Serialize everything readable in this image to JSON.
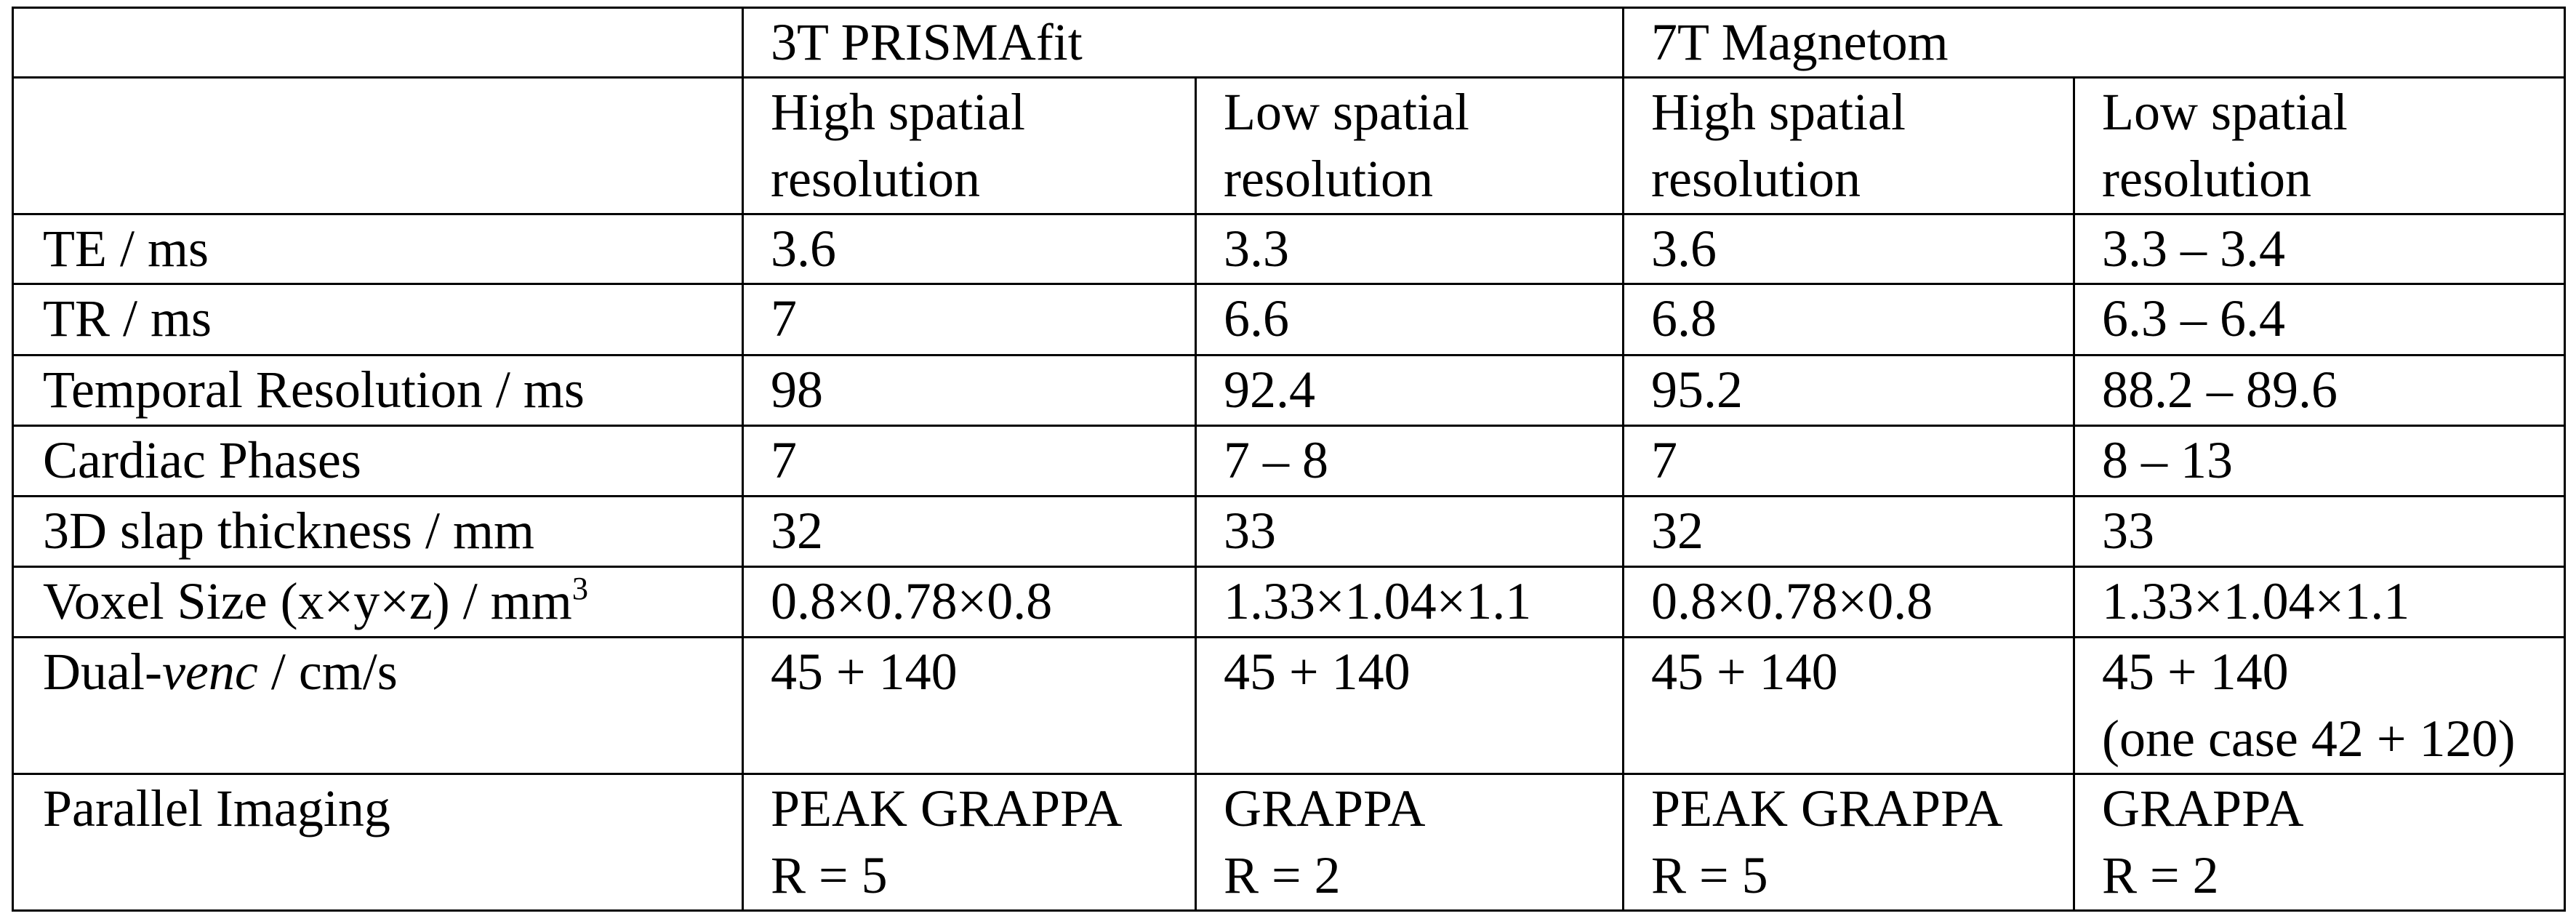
{
  "table": {
    "scanners": [
      {
        "label": "3T PRISMAfit"
      },
      {
        "label": "7T Magnetom"
      }
    ],
    "protocols": [
      {
        "line1": "High spatial",
        "line2": "resolution"
      },
      {
        "line1": "Low spatial",
        "line2": "resolution"
      },
      {
        "line1": "High spatial",
        "line2": "resolution"
      },
      {
        "line1": "Low spatial",
        "line2": "resolution"
      }
    ],
    "rows": [
      {
        "label": "TE / ms",
        "cells": [
          [
            "3.6"
          ],
          [
            "3.3"
          ],
          [
            "3.6"
          ],
          [
            "3.3 – 3.4"
          ]
        ]
      },
      {
        "label": "TR / ms",
        "cells": [
          [
            "7"
          ],
          [
            "6.6"
          ],
          [
            "6.8"
          ],
          [
            "6.3 – 6.4"
          ]
        ]
      },
      {
        "label": "Temporal Resolution / ms",
        "cells": [
          [
            "98"
          ],
          [
            "92.4"
          ],
          [
            "95.2"
          ],
          [
            "88.2 – 89.6"
          ]
        ]
      },
      {
        "label": "Cardiac Phases",
        "cells": [
          [
            "7"
          ],
          [
            "7 – 8"
          ],
          [
            "7"
          ],
          [
            "8 – 13"
          ]
        ]
      },
      {
        "label": "3D slap thickness / mm",
        "cells": [
          [
            "32"
          ],
          [
            "33"
          ],
          [
            "32"
          ],
          [
            "33"
          ]
        ]
      },
      {
        "label_prefix": "Voxel Size (x×y×z) / mm",
        "label_sup": "3",
        "cells": [
          [
            "0.8×0.78×0.8"
          ],
          [
            "1.33×1.04×1.1"
          ],
          [
            "0.8×0.78×0.8"
          ],
          [
            "1.33×1.04×1.1"
          ]
        ]
      },
      {
        "label_prefix": "Dual-",
        "label_italic": "venc",
        "label_suffix": " / cm/s",
        "cells": [
          [
            "45 + 140"
          ],
          [
            "45 + 140"
          ],
          [
            "45 + 140"
          ],
          [
            "45 + 140",
            "(one case 42 + 120)"
          ]
        ]
      },
      {
        "label": "Parallel Imaging",
        "cells": [
          [
            "PEAK GRAPPA",
            "R = 5"
          ],
          [
            "GRAPPA",
            "R = 2"
          ],
          [
            "PEAK GRAPPA",
            "R = 5"
          ],
          [
            "GRAPPA",
            "R = 2"
          ]
        ]
      }
    ]
  }
}
